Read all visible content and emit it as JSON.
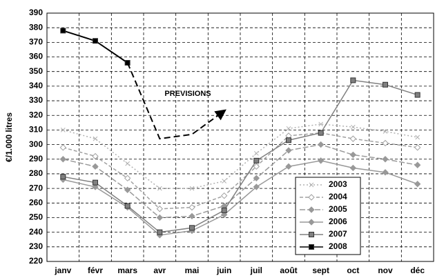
{
  "chart_data": {
    "type": "line",
    "y_label": "€/1.000 litres",
    "annotation": "PREVISIONS",
    "categories": [
      "janv",
      "févr",
      "mars",
      "avr",
      "mai",
      "juin",
      "juil",
      "août",
      "sept",
      "oct",
      "nov",
      "déc"
    ],
    "ylim": [
      220,
      390
    ],
    "yticks": [
      220,
      230,
      240,
      250,
      260,
      270,
      280,
      290,
      300,
      310,
      320,
      330,
      340,
      350,
      360,
      370,
      380,
      390
    ],
    "grid": true,
    "legend": "lower-right",
    "series": [
      {
        "name": "2003",
        "color": "#b0b0b0",
        "dash": "2,3",
        "marker": "x",
        "values": [
          310,
          304,
          287,
          270,
          270,
          275,
          294,
          311,
          314,
          312,
          309,
          305
        ]
      },
      {
        "name": "2004",
        "color": "#a0a0a0",
        "dash": "5,3",
        "marker": "diamond-open",
        "values": [
          298,
          292,
          277,
          256,
          257,
          265,
          285,
          306,
          308,
          304,
          301,
          298
        ]
      },
      {
        "name": "2005",
        "color": "#999999",
        "dash": "8,3",
        "marker": "diamond",
        "values": [
          290,
          285,
          269,
          250,
          251,
          258,
          277,
          296,
          300,
          293,
          290,
          286
        ]
      },
      {
        "name": "2006",
        "color": "#999999",
        "dash": "",
        "marker": "diamond",
        "values": [
          276,
          271,
          257,
          238,
          241,
          252,
          271,
          285,
          289,
          284,
          281,
          273
        ]
      },
      {
        "name": "2007",
        "color": "#808080",
        "dash": "",
        "marker": "square",
        "values": [
          278,
          274,
          258,
          240,
          243,
          255,
          289,
          303,
          308,
          344,
          341,
          334
        ]
      },
      {
        "name": "2008",
        "color": "#000000",
        "dash": "",
        "marker": "square",
        "values": [
          378,
          371,
          356,
          null,
          null,
          null,
          null,
          null,
          null,
          null,
          null,
          null
        ]
      }
    ],
    "forecast": {
      "color": "#000000",
      "values": [
        null,
        null,
        356,
        304,
        307,
        323,
        null,
        null,
        null,
        null,
        null,
        null
      ]
    }
  }
}
